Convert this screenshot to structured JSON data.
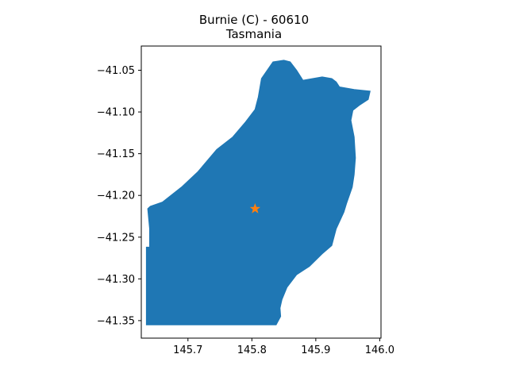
{
  "map": {
    "title_line1": "Burnie (C) - 60610",
    "title_line2": "Tasmania",
    "colors": {
      "region_fill": "#1f77b4",
      "marker": "#ff7f0e",
      "axis": "#000000"
    },
    "x_ticks": [
      "145.7",
      "145.8",
      "145.9",
      "146.0"
    ],
    "y_ticks": [
      "−41.05",
      "−41.10",
      "−41.15",
      "−41.20",
      "−41.25",
      "−41.30",
      "−41.35"
    ],
    "marker_icon": "star-icon"
  },
  "chart_data": {
    "type": "map",
    "title": "Burnie (C) - 60610\nTasmania",
    "xlim": [
      145.627,
      146.002
    ],
    "ylim": [
      -41.371,
      -41.021
    ],
    "x_ticks": [
      145.7,
      145.8,
      145.9,
      146.0
    ],
    "y_ticks": [
      -41.05,
      -41.1,
      -41.15,
      -41.2,
      -41.25,
      -41.3,
      -41.35
    ],
    "marker": {
      "x": 145.805,
      "y": -41.216
    },
    "region_outline": [
      [
        145.635,
        -41.355
      ],
      [
        145.635,
        -41.262
      ],
      [
        145.64,
        -41.262
      ],
      [
        145.64,
        -41.24
      ],
      [
        145.637,
        -41.216
      ],
      [
        145.641,
        -41.213
      ],
      [
        145.66,
        -41.208
      ],
      [
        145.69,
        -41.19
      ],
      [
        145.715,
        -41.172
      ],
      [
        145.745,
        -41.145
      ],
      [
        145.77,
        -41.13
      ],
      [
        145.79,
        -41.112
      ],
      [
        145.805,
        -41.097
      ],
      [
        145.81,
        -41.082
      ],
      [
        145.815,
        -41.06
      ],
      [
        145.833,
        -41.04
      ],
      [
        145.85,
        -41.038
      ],
      [
        145.86,
        -41.04
      ],
      [
        145.87,
        -41.05
      ],
      [
        145.88,
        -41.062
      ],
      [
        145.895,
        -41.06
      ],
      [
        145.91,
        -41.058
      ],
      [
        145.925,
        -41.06
      ],
      [
        145.932,
        -41.064
      ],
      [
        145.937,
        -41.07
      ],
      [
        145.96,
        -41.073
      ],
      [
        145.985,
        -41.075
      ],
      [
        145.982,
        -41.085
      ],
      [
        145.968,
        -41.092
      ],
      [
        145.958,
        -41.098
      ],
      [
        145.955,
        -41.11
      ],
      [
        145.96,
        -41.13
      ],
      [
        145.962,
        -41.155
      ],
      [
        145.96,
        -41.175
      ],
      [
        145.957,
        -41.19
      ],
      [
        145.948,
        -41.21
      ],
      [
        145.944,
        -41.22
      ],
      [
        145.932,
        -41.24
      ],
      [
        145.925,
        -41.26
      ],
      [
        145.91,
        -41.27
      ],
      [
        145.89,
        -41.285
      ],
      [
        145.87,
        -41.295
      ],
      [
        145.855,
        -41.31
      ],
      [
        145.847,
        -41.325
      ],
      [
        145.844,
        -41.335
      ],
      [
        145.845,
        -41.345
      ],
      [
        145.838,
        -41.355
      ]
    ]
  }
}
